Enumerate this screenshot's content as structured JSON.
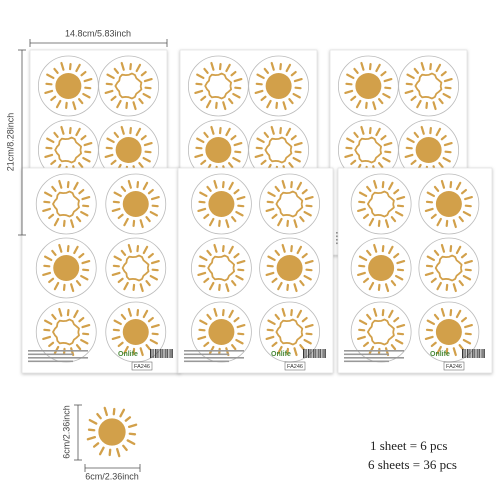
{
  "dimensions": {
    "sheet_width": "14.8cm/5.83inch",
    "sheet_height": "21cm/8.28inch",
    "sticker_height": "6cm/2.36inch",
    "sticker_width": "6cm/2.36inch"
  },
  "sheet_footer": {
    "code": "FA246",
    "brand": "Onlife"
  },
  "summary": {
    "per_sheet": "1 sheet = 6 pcs",
    "total": "6 sheets = 36 pcs"
  }
}
